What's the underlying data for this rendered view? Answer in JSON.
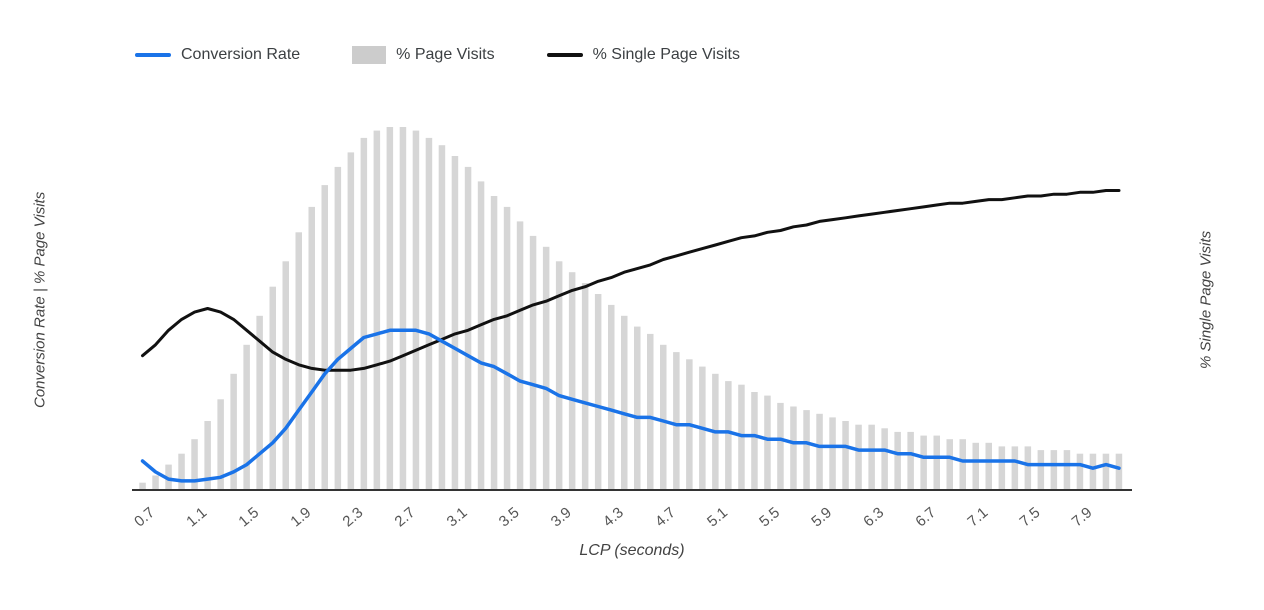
{
  "legend": {
    "items": [
      {
        "label": "Conversion Rate",
        "type": "line",
        "color": "#1a73e8"
      },
      {
        "label": "% Page Visits",
        "type": "bar",
        "color": "#cccccc"
      },
      {
        "label": "% Single Page Visits",
        "type": "line",
        "color": "#111111"
      }
    ]
  },
  "axes": {
    "left_title": "Conversion Rate | % Page Visits",
    "right_title": "% Single Page Visits",
    "x_title": "LCP (seconds)",
    "x_ticks": [
      "0.7",
      "1.1",
      "1.5",
      "1.9",
      "2.3",
      "2.7",
      "3.1",
      "3.5",
      "3.9",
      "4.3",
      "4.7",
      "5.1",
      "5.5",
      "5.9",
      "6.3",
      "6.7",
      "7.1",
      "7.5",
      "7.9"
    ]
  },
  "chart_data": {
    "type": "bar",
    "subtype": "combo-bar-and-lines",
    "xlabel": "LCP (seconds)",
    "ylabel_left": "Conversion Rate | % Page Visits",
    "ylabel_right": "% Single Page Visits",
    "x_range": [
      0.6,
      8.1
    ],
    "ylim": [
      0,
      1
    ],
    "y_units": "relative (no y-axis tick labels shown)",
    "grid": false,
    "legend_position": "top",
    "x": [
      0.6,
      0.7,
      0.8,
      0.9,
      1.0,
      1.1,
      1.2,
      1.3,
      1.4,
      1.5,
      1.6,
      1.7,
      1.8,
      1.9,
      2.0,
      2.1,
      2.2,
      2.3,
      2.4,
      2.5,
      2.6,
      2.7,
      2.8,
      2.9,
      3.0,
      3.1,
      3.2,
      3.3,
      3.4,
      3.5,
      3.6,
      3.7,
      3.8,
      3.9,
      4.0,
      4.1,
      4.2,
      4.3,
      4.4,
      4.5,
      4.6,
      4.7,
      4.8,
      4.9,
      5.0,
      5.1,
      5.2,
      5.3,
      5.4,
      5.5,
      5.6,
      5.7,
      5.8,
      5.9,
      6.0,
      6.1,
      6.2,
      6.3,
      6.4,
      6.5,
      6.6,
      6.7,
      6.8,
      6.9,
      7.0,
      7.1,
      7.2,
      7.3,
      7.4,
      7.5,
      7.6,
      7.7,
      7.8,
      7.9,
      8.0,
      8.1
    ],
    "bar_series": {
      "name": "% Page Visits",
      "color": "#d6d6d6",
      "values": [
        0.02,
        0.04,
        0.07,
        0.1,
        0.14,
        0.19,
        0.25,
        0.32,
        0.4,
        0.48,
        0.56,
        0.63,
        0.71,
        0.78,
        0.84,
        0.89,
        0.93,
        0.97,
        0.99,
        1.0,
        1.0,
        0.99,
        0.97,
        0.95,
        0.92,
        0.89,
        0.85,
        0.81,
        0.78,
        0.74,
        0.7,
        0.67,
        0.63,
        0.6,
        0.57,
        0.54,
        0.51,
        0.48,
        0.45,
        0.43,
        0.4,
        0.38,
        0.36,
        0.34,
        0.32,
        0.3,
        0.29,
        0.27,
        0.26,
        0.24,
        0.23,
        0.22,
        0.21,
        0.2,
        0.19,
        0.18,
        0.18,
        0.17,
        0.16,
        0.16,
        0.15,
        0.15,
        0.14,
        0.14,
        0.13,
        0.13,
        0.12,
        0.12,
        0.12,
        0.11,
        0.11,
        0.11,
        0.1,
        0.1,
        0.1,
        0.1
      ]
    },
    "line_series": [
      {
        "name": "Conversion Rate",
        "color": "#1a73e8",
        "values": [
          0.08,
          0.05,
          0.03,
          0.025,
          0.025,
          0.03,
          0.035,
          0.05,
          0.07,
          0.1,
          0.13,
          0.17,
          0.22,
          0.27,
          0.32,
          0.36,
          0.39,
          0.42,
          0.43,
          0.44,
          0.44,
          0.44,
          0.43,
          0.41,
          0.39,
          0.37,
          0.35,
          0.34,
          0.32,
          0.3,
          0.29,
          0.28,
          0.26,
          0.25,
          0.24,
          0.23,
          0.22,
          0.21,
          0.2,
          0.2,
          0.19,
          0.18,
          0.18,
          0.17,
          0.16,
          0.16,
          0.15,
          0.15,
          0.14,
          0.14,
          0.13,
          0.13,
          0.12,
          0.12,
          0.12,
          0.11,
          0.11,
          0.11,
          0.1,
          0.1,
          0.09,
          0.09,
          0.09,
          0.08,
          0.08,
          0.08,
          0.08,
          0.08,
          0.07,
          0.07,
          0.07,
          0.07,
          0.07,
          0.06,
          0.07,
          0.06
        ]
      },
      {
        "name": "% Single Page Visits",
        "color": "#111111",
        "values": [
          0.37,
          0.4,
          0.44,
          0.47,
          0.49,
          0.5,
          0.49,
          0.47,
          0.44,
          0.41,
          0.38,
          0.36,
          0.345,
          0.335,
          0.33,
          0.33,
          0.33,
          0.335,
          0.345,
          0.355,
          0.37,
          0.385,
          0.4,
          0.415,
          0.43,
          0.44,
          0.455,
          0.47,
          0.48,
          0.495,
          0.51,
          0.52,
          0.535,
          0.55,
          0.56,
          0.575,
          0.585,
          0.6,
          0.61,
          0.62,
          0.635,
          0.645,
          0.655,
          0.665,
          0.675,
          0.685,
          0.695,
          0.7,
          0.71,
          0.715,
          0.725,
          0.73,
          0.74,
          0.745,
          0.75,
          0.755,
          0.76,
          0.765,
          0.77,
          0.775,
          0.78,
          0.785,
          0.79,
          0.79,
          0.795,
          0.8,
          0.8,
          0.805,
          0.81,
          0.81,
          0.815,
          0.815,
          0.82,
          0.82,
          0.825,
          0.825
        ]
      }
    ]
  }
}
